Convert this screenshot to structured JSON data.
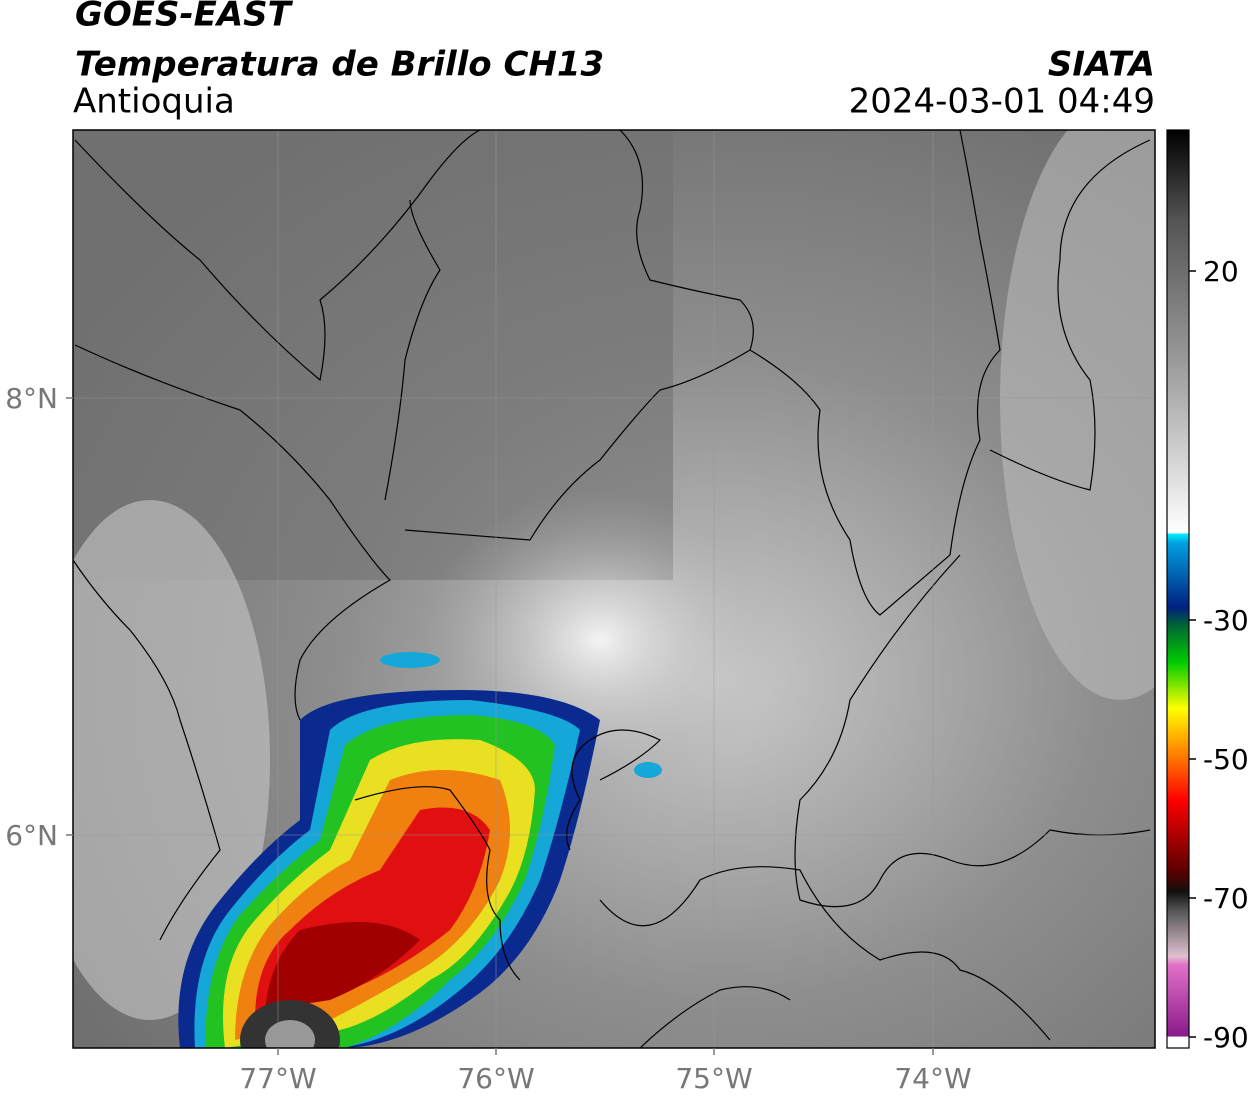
{
  "header": {
    "satellite": "GOES-EAST",
    "product": "Temperatura de Brillo CH13",
    "region": "Antioquia",
    "source": "SIATA",
    "datetime": "2024-03-01 04:49"
  },
  "map": {
    "lat_labels": [
      "8°N",
      "6°N"
    ],
    "lon_labels": [
      "77°W",
      "76°W",
      "75°W",
      "74°W"
    ]
  },
  "colorbar": {
    "tick_labels": [
      "20",
      "-30",
      "-50",
      "-70",
      "-90"
    ]
  }
}
